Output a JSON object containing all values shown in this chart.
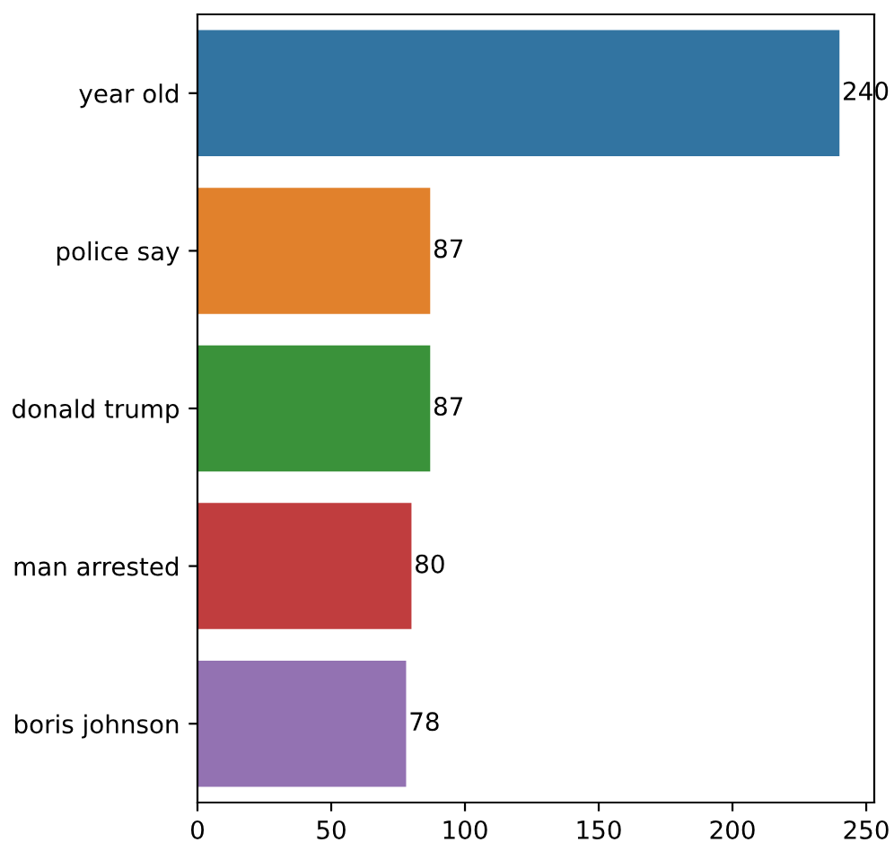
{
  "chart_data": {
    "type": "bar",
    "orientation": "horizontal",
    "categories": [
      "year old",
      "police say",
      "donald trump",
      "man arrested",
      "boris johnson"
    ],
    "values": [
      240,
      87,
      87,
      80,
      78
    ],
    "colors": [
      "#3274a1",
      "#e1812c",
      "#3a923a",
      "#c03d3e",
      "#9372b2"
    ],
    "xlim": [
      0,
      253
    ],
    "xticks": [
      0,
      50,
      100,
      150,
      200,
      250
    ],
    "data_labels": true,
    "grid": false
  }
}
